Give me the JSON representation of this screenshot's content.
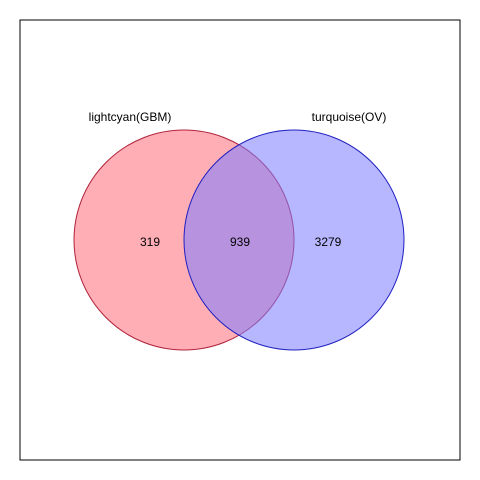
{
  "chart_data": {
    "type": "venn",
    "sets": [
      {
        "name": "lightcyan(GBM)",
        "color": "#ff6b78",
        "stroke": "#b0203a"
      },
      {
        "name": "turquoise(OV)",
        "color": "#7b7bff",
        "stroke": "#2020c0"
      }
    ],
    "regions": {
      "left_only": "319",
      "intersection": "939",
      "right_only": "3279"
    }
  },
  "colors": {
    "background": "#ffffff",
    "frame": "#000000",
    "text": "#000000"
  }
}
